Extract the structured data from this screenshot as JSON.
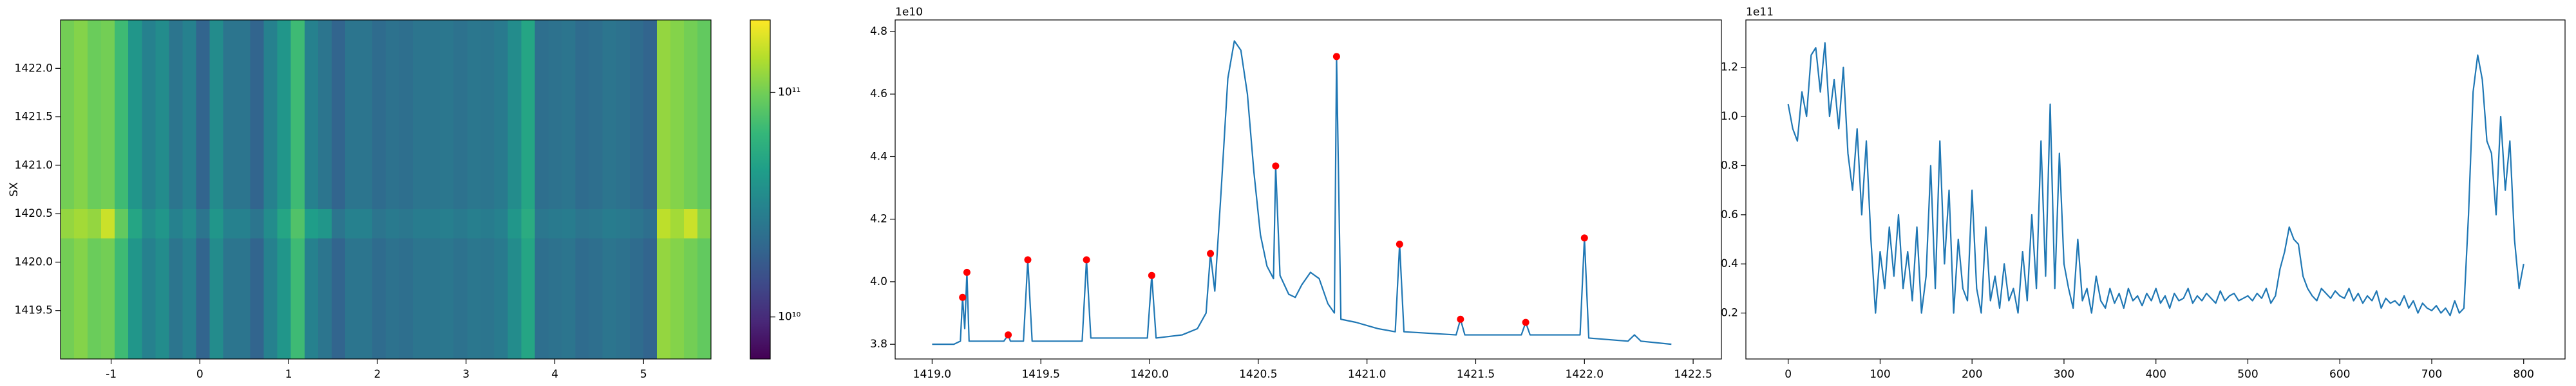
{
  "chart_data": [
    {
      "type": "heatmap",
      "ylabel": "SX",
      "xlim": [
        -1.57,
        5.76
      ],
      "ylim": [
        1419.0,
        1422.5
      ],
      "xticks": [
        -1,
        0,
        1,
        2,
        3,
        4,
        5
      ],
      "yticks": [
        1419.5,
        {
          "value": 1420.0,
          "label": "1420.0"
        },
        1420.5,
        {
          "value": 1421.0,
          "label": "1421.0"
        },
        1421.5,
        {
          "value": 1422.0,
          "label": "1422.0"
        }
      ],
      "y_edges": [
        1419.0,
        1420.25,
        1420.55,
        1422.5
      ],
      "z": [
        [
          100000000000.0,
          110000000000.0,
          95000000000.0,
          100000000000.0,
          70000000000.0,
          40000000000.0,
          30000000000.0,
          35000000000.0,
          25000000000.0,
          30000000000.0,
          20000000000.0,
          35000000000.0,
          25000000000.0,
          25000000000.0,
          20000000000.0,
          30000000000.0,
          40000000000.0,
          70000000000.0,
          30000000000.0,
          25000000000.0,
          20000000000.0,
          25000000000.0,
          25000000000.0,
          22000000000.0,
          24000000000.0,
          23000000000.0,
          25000000000.0,
          25000000000.0,
          26000000000.0,
          24000000000.0,
          26000000000.0,
          25000000000.0,
          27000000000.0,
          35000000000.0,
          50000000000.0,
          23000000000.0,
          24000000000.0,
          25000000000.0,
          22000000000.0,
          23000000000.0,
          25000000000.0,
          24000000000.0,
          22000000000.0,
          20000000000.0,
          120000000000.0,
          110000000000.0,
          100000000000.0,
          90000000000.0
        ],
        [
          120000000000.0,
          130000000000.0,
          120000000000.0,
          160000000000.0,
          90000000000.0,
          50000000000.0,
          35000000000.0,
          40000000000.0,
          30000000000.0,
          35000000000.0,
          25000000000.0,
          40000000000.0,
          30000000000.0,
          30000000000.0,
          25000000000.0,
          35000000000.0,
          50000000000.0,
          80000000000.0,
          45000000000.0,
          40000000000.0,
          25000000000.0,
          30000000000.0,
          30000000000.0,
          25000000000.0,
          27000000000.0,
          26000000000.0,
          28000000000.0,
          28000000000.0,
          29000000000.0,
          27000000000.0,
          29000000000.0,
          28000000000.0,
          30000000000.0,
          40000000000.0,
          55000000000.0,
          26000000000.0,
          27000000000.0,
          28000000000.0,
          25000000000.0,
          26000000000.0,
          28000000000.0,
          27000000000.0,
          25000000000.0,
          23000000000.0,
          150000000000.0,
          130000000000.0,
          160000000000.0,
          110000000000.0
        ],
        [
          100000000000.0,
          110000000000.0,
          95000000000.0,
          100000000000.0,
          70000000000.0,
          40000000000.0,
          30000000000.0,
          35000000000.0,
          25000000000.0,
          30000000000.0,
          20000000000.0,
          35000000000.0,
          25000000000.0,
          25000000000.0,
          20000000000.0,
          30000000000.0,
          40000000000.0,
          70000000000.0,
          30000000000.0,
          25000000000.0,
          20000000000.0,
          25000000000.0,
          25000000000.0,
          22000000000.0,
          24000000000.0,
          23000000000.0,
          25000000000.0,
          25000000000.0,
          26000000000.0,
          24000000000.0,
          26000000000.0,
          25000000000.0,
          27000000000.0,
          35000000000.0,
          50000000000.0,
          23000000000.0,
          24000000000.0,
          25000000000.0,
          22000000000.0,
          23000000000.0,
          25000000000.0,
          24000000000.0,
          22000000000.0,
          20000000000.0,
          120000000000.0,
          110000000000.0,
          100000000000.0,
          90000000000.0
        ]
      ],
      "colormap": "viridis",
      "color_scale": "log",
      "clim": [
        6500000000.0,
        210000000000.0
      ],
      "colorbar_ticks": [
        {
          "value": 10000000000.0,
          "label": "10¹⁰"
        },
        {
          "value": 100000000000.0,
          "label": "10¹¹"
        }
      ]
    },
    {
      "type": "line",
      "offset_text": "1e10",
      "xlim": [
        1418.83,
        1422.63
      ],
      "ylim": [
        3.753,
        4.837
      ],
      "xticks": [
        {
          "value": 1419.0,
          "label": "1419.0"
        },
        1419.5,
        {
          "value": 1420.0,
          "label": "1420.0"
        },
        1420.5,
        {
          "value": 1421.0,
          "label": "1421.0"
        },
        1421.5,
        {
          "value": 1422.0,
          "label": "1422.0"
        },
        1422.5
      ],
      "yticks": [
        3.8,
        {
          "value": 4.0,
          "label": "4.0"
        },
        4.2,
        4.4,
        4.6,
        4.8
      ],
      "series": [
        {
          "type": "line",
          "color": "#1f77b4",
          "x": [
            1419.0,
            1419.1,
            1419.13,
            1419.14,
            1419.15,
            1419.16,
            1419.17,
            1419.33,
            1419.35,
            1419.36,
            1419.42,
            1419.44,
            1419.46,
            1419.69,
            1419.71,
            1419.73,
            1419.99,
            1420.01,
            1420.03,
            1420.15,
            1420.22,
            1420.26,
            1420.28,
            1420.3,
            1420.33,
            1420.36,
            1420.39,
            1420.42,
            1420.45,
            1420.48,
            1420.51,
            1420.54,
            1420.57,
            1420.58,
            1420.6,
            1420.64,
            1420.67,
            1420.7,
            1420.74,
            1420.78,
            1420.82,
            1420.85,
            1420.86,
            1420.88,
            1420.95,
            1421.05,
            1421.13,
            1421.15,
            1421.17,
            1421.41,
            1421.43,
            1421.45,
            1421.71,
            1421.73,
            1421.75,
            1421.98,
            1422.0,
            1422.02,
            1422.2,
            1422.23,
            1422.26,
            1422.4
          ],
          "values": [
            3.8,
            3.8,
            3.81,
            3.95,
            3.85,
            4.03,
            3.81,
            3.81,
            3.83,
            3.81,
            3.81,
            4.07,
            3.81,
            3.81,
            4.07,
            3.82,
            3.82,
            4.02,
            3.82,
            3.83,
            3.85,
            3.9,
            4.09,
            3.97,
            4.3,
            4.65,
            4.77,
            4.74,
            4.6,
            4.35,
            4.15,
            4.05,
            4.01,
            4.37,
            4.02,
            3.96,
            3.95,
            3.99,
            4.03,
            4.01,
            3.93,
            3.9,
            4.72,
            3.88,
            3.87,
            3.85,
            3.84,
            4.12,
            3.84,
            3.83,
            3.88,
            3.83,
            3.83,
            3.87,
            3.83,
            3.83,
            4.14,
            3.82,
            3.81,
            3.83,
            3.81,
            3.8
          ]
        },
        {
          "type": "scatter",
          "color": "red",
          "x": [
            1419.14,
            1419.16,
            1419.35,
            1419.44,
            1419.71,
            1420.01,
            1420.28,
            1420.58,
            1420.86,
            1421.15,
            1421.43,
            1421.73,
            1422.0
          ],
          "values": [
            3.95,
            4.03,
            3.83,
            4.07,
            4.07,
            4.02,
            4.09,
            4.37,
            4.72,
            4.12,
            3.88,
            3.87,
            4.14
          ]
        }
      ]
    },
    {
      "type": "line",
      "offset_text": "1e11",
      "xlim": [
        -46,
        845
      ],
      "ylim": [
        0.013,
        1.393
      ],
      "xticks": [
        0,
        100,
        200,
        300,
        400,
        500,
        600,
        700,
        800
      ],
      "yticks": [
        0.2,
        0.4,
        0.6,
        0.8,
        {
          "value": 1.0,
          "label": "1.0"
        },
        1.2
      ],
      "series": [
        {
          "type": "line",
          "color": "#1f77b4",
          "x": [
            0,
            5,
            10,
            15,
            20,
            25,
            30,
            35,
            40,
            45,
            50,
            55,
            60,
            65,
            70,
            75,
            80,
            85,
            90,
            95,
            100,
            105,
            110,
            115,
            120,
            125,
            130,
            135,
            140,
            145,
            150,
            155,
            160,
            165,
            170,
            175,
            180,
            185,
            190,
            195,
            200,
            205,
            210,
            215,
            220,
            225,
            230,
            235,
            240,
            245,
            250,
            255,
            260,
            265,
            270,
            275,
            280,
            285,
            290,
            295,
            300,
            305,
            310,
            315,
            320,
            325,
            330,
            335,
            340,
            345,
            350,
            355,
            360,
            365,
            370,
            375,
            380,
            385,
            390,
            395,
            400,
            405,
            410,
            415,
            420,
            425,
            430,
            435,
            440,
            445,
            450,
            455,
            460,
            465,
            470,
            475,
            480,
            485,
            490,
            495,
            500,
            505,
            510,
            515,
            520,
            525,
            530,
            535,
            540,
            545,
            550,
            555,
            560,
            565,
            570,
            575,
            580,
            585,
            590,
            595,
            600,
            605,
            610,
            615,
            620,
            625,
            630,
            635,
            640,
            645,
            650,
            655,
            660,
            665,
            670,
            675,
            680,
            685,
            690,
            695,
            700,
            705,
            710,
            715,
            720,
            725,
            730,
            735,
            740,
            745,
            750,
            755,
            760,
            765,
            770,
            775,
            780,
            785,
            790,
            795,
            800
          ],
          "values": [
            1.05,
            0.95,
            0.9,
            1.1,
            1.0,
            1.25,
            1.28,
            1.1,
            1.3,
            1.0,
            1.15,
            0.95,
            1.2,
            0.85,
            0.7,
            0.95,
            0.6,
            0.9,
            0.5,
            0.2,
            0.45,
            0.3,
            0.55,
            0.35,
            0.6,
            0.3,
            0.45,
            0.25,
            0.55,
            0.2,
            0.35,
            0.8,
            0.3,
            0.9,
            0.4,
            0.7,
            0.2,
            0.5,
            0.3,
            0.25,
            0.7,
            0.3,
            0.2,
            0.55,
            0.25,
            0.35,
            0.22,
            0.4,
            0.25,
            0.3,
            0.2,
            0.45,
            0.25,
            0.6,
            0.3,
            0.9,
            0.35,
            1.05,
            0.3,
            0.85,
            0.4,
            0.3,
            0.22,
            0.5,
            0.25,
            0.3,
            0.2,
            0.35,
            0.25,
            0.22,
            0.3,
            0.24,
            0.28,
            0.22,
            0.3,
            0.25,
            0.27,
            0.23,
            0.28,
            0.25,
            0.3,
            0.24,
            0.27,
            0.22,
            0.28,
            0.25,
            0.26,
            0.3,
            0.24,
            0.27,
            0.25,
            0.28,
            0.26,
            0.24,
            0.29,
            0.25,
            0.27,
            0.28,
            0.25,
            0.26,
            0.27,
            0.25,
            0.28,
            0.26,
            0.3,
            0.24,
            0.27,
            0.38,
            0.45,
            0.55,
            0.5,
            0.48,
            0.35,
            0.3,
            0.27,
            0.25,
            0.3,
            0.28,
            0.26,
            0.29,
            0.27,
            0.26,
            0.3,
            0.25,
            0.28,
            0.24,
            0.27,
            0.25,
            0.29,
            0.22,
            0.26,
            0.24,
            0.25,
            0.23,
            0.27,
            0.22,
            0.25,
            0.2,
            0.24,
            0.22,
            0.21,
            0.23,
            0.2,
            0.22,
            0.19,
            0.25,
            0.2,
            0.22,
            0.6,
            1.1,
            1.25,
            1.15,
            0.9,
            0.85,
            0.6,
            1.0,
            0.7,
            0.9,
            0.5,
            0.3,
            0.4
          ]
        }
      ]
    }
  ]
}
